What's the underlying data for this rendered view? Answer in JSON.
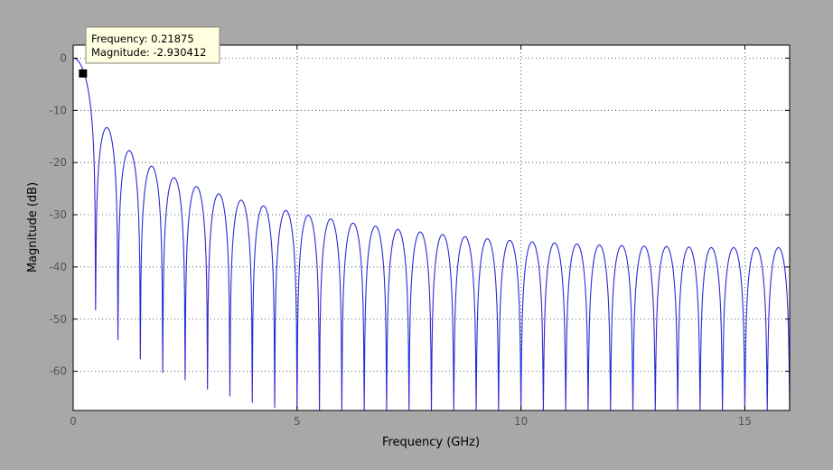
{
  "figure": {
    "background": "#a8a8a8",
    "axes_background": "#ffffff",
    "line_color": "#2b2bd6",
    "grid_color": "#333333"
  },
  "chart_data": {
    "type": "line",
    "title": "",
    "xlabel": "Frequency (GHz)",
    "ylabel": "Magnitude (dB)",
    "xlim": [
      0,
      16
    ],
    "ylim": [
      -67.5,
      2.5
    ],
    "xticks": [
      0,
      5,
      10,
      15
    ],
    "yticks": [
      0,
      -10,
      -20,
      -30,
      -40,
      -50,
      -60
    ],
    "xtick_labels": [
      "0",
      "5",
      "10",
      "15"
    ],
    "ytick_labels": [
      "0",
      "-10",
      "-20",
      "-30",
      "-40",
      "-50",
      "-60"
    ],
    "grid": true,
    "series": [
      {
        "name": "",
        "notch_spacing_ghz": 0.5,
        "floor_db": -67.5,
        "peaks": [
          {
            "x": 0.0,
            "y": 0.0
          },
          {
            "x": 0.75,
            "y": -13.3
          },
          {
            "x": 1.25,
            "y": -17.7
          },
          {
            "x": 1.75,
            "y": -20.7
          },
          {
            "x": 2.25,
            "y": -22.9
          },
          {
            "x": 2.75,
            "y": -24.6
          },
          {
            "x": 3.25,
            "y": -26.0
          },
          {
            "x": 3.75,
            "y": -27.2
          },
          {
            "x": 4.25,
            "y": -28.3
          },
          {
            "x": 4.75,
            "y": -29.2
          },
          {
            "x": 5.25,
            "y": -30.1
          },
          {
            "x": 5.75,
            "y": -30.8
          },
          {
            "x": 6.25,
            "y": -31.6
          },
          {
            "x": 6.75,
            "y": -32.2
          },
          {
            "x": 7.25,
            "y": -32.8
          },
          {
            "x": 7.75,
            "y": -33.3
          },
          {
            "x": 8.25,
            "y": -33.8
          },
          {
            "x": 8.75,
            "y": -34.2
          },
          {
            "x": 9.25,
            "y": -34.6
          },
          {
            "x": 9.75,
            "y": -34.9
          },
          {
            "x": 10.25,
            "y": -35.2
          },
          {
            "x": 10.75,
            "y": -35.4
          },
          {
            "x": 11.25,
            "y": -35.6
          },
          {
            "x": 11.75,
            "y": -35.8
          },
          {
            "x": 12.25,
            "y": -35.9
          },
          {
            "x": 12.75,
            "y": -36.0
          },
          {
            "x": 13.25,
            "y": -36.1
          },
          {
            "x": 13.75,
            "y": -36.2
          },
          {
            "x": 14.25,
            "y": -36.3
          },
          {
            "x": 14.75,
            "y": -36.3
          },
          {
            "x": 15.25,
            "y": -36.3
          },
          {
            "x": 15.75,
            "y": -36.3
          }
        ],
        "nulls": [
          {
            "x": 0.5,
            "y": -48.3
          },
          {
            "x": 1.0,
            "y": -54.0
          },
          {
            "x": 1.5,
            "y": -57.7
          },
          {
            "x": 2.0,
            "y": -60.3
          },
          {
            "x": 2.5,
            "y": -61.7
          },
          {
            "x": 3.0,
            "y": -63.5
          },
          {
            "x": 3.5,
            "y": -64.8
          },
          {
            "x": 4.0,
            "y": -66.0
          },
          {
            "x": 4.5,
            "y": -67.0
          }
        ]
      }
    ],
    "datatip": {
      "x": 0.21875,
      "y": -2.930412,
      "line1": "Frequency: 0.21875",
      "line2": "Magnitude: -2.930412"
    }
  }
}
